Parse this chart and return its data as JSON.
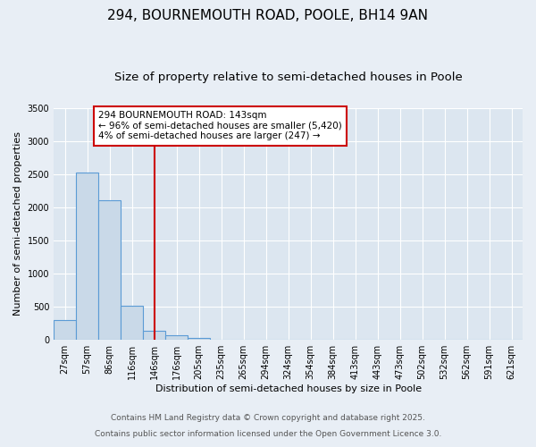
{
  "title_line1": "294, BOURNEMOUTH ROAD, POOLE, BH14 9AN",
  "title_line2": "Size of property relative to semi-detached houses in Poole",
  "xlabel": "Distribution of semi-detached houses by size in Poole",
  "ylabel": "Number of semi-detached properties",
  "categories": [
    "27sqm",
    "57sqm",
    "86sqm",
    "116sqm",
    "146sqm",
    "176sqm",
    "205sqm",
    "235sqm",
    "265sqm",
    "294sqm",
    "324sqm",
    "354sqm",
    "384sqm",
    "413sqm",
    "443sqm",
    "473sqm",
    "502sqm",
    "532sqm",
    "562sqm",
    "591sqm",
    "621sqm"
  ],
  "values": [
    300,
    2520,
    2100,
    520,
    140,
    65,
    30,
    0,
    0,
    0,
    0,
    0,
    0,
    0,
    0,
    0,
    0,
    0,
    0,
    0,
    0
  ],
  "bar_color": "#c9d9e8",
  "bar_edge_color": "#5b9bd5",
  "vline_bin_index": 4,
  "vline_color": "#cc0000",
  "annotation_text": "294 BOURNEMOUTH ROAD: 143sqm\n← 96% of semi-detached houses are smaller (5,420)\n4% of semi-detached houses are larger (247) →",
  "annotation_box_color": "#cc0000",
  "ylim": [
    0,
    3500
  ],
  "yticks": [
    0,
    500,
    1000,
    1500,
    2000,
    2500,
    3000,
    3500
  ],
  "background_color": "#e8eef5",
  "plot_background": "#dce6f0",
  "footer1": "Contains HM Land Registry data © Crown copyright and database right 2025.",
  "footer2": "Contains public sector information licensed under the Open Government Licence 3.0.",
  "title_fontsize": 11,
  "subtitle_fontsize": 9.5,
  "axis_label_fontsize": 8,
  "tick_fontsize": 7,
  "annotation_fontsize": 7.5,
  "footer_fontsize": 6.5
}
